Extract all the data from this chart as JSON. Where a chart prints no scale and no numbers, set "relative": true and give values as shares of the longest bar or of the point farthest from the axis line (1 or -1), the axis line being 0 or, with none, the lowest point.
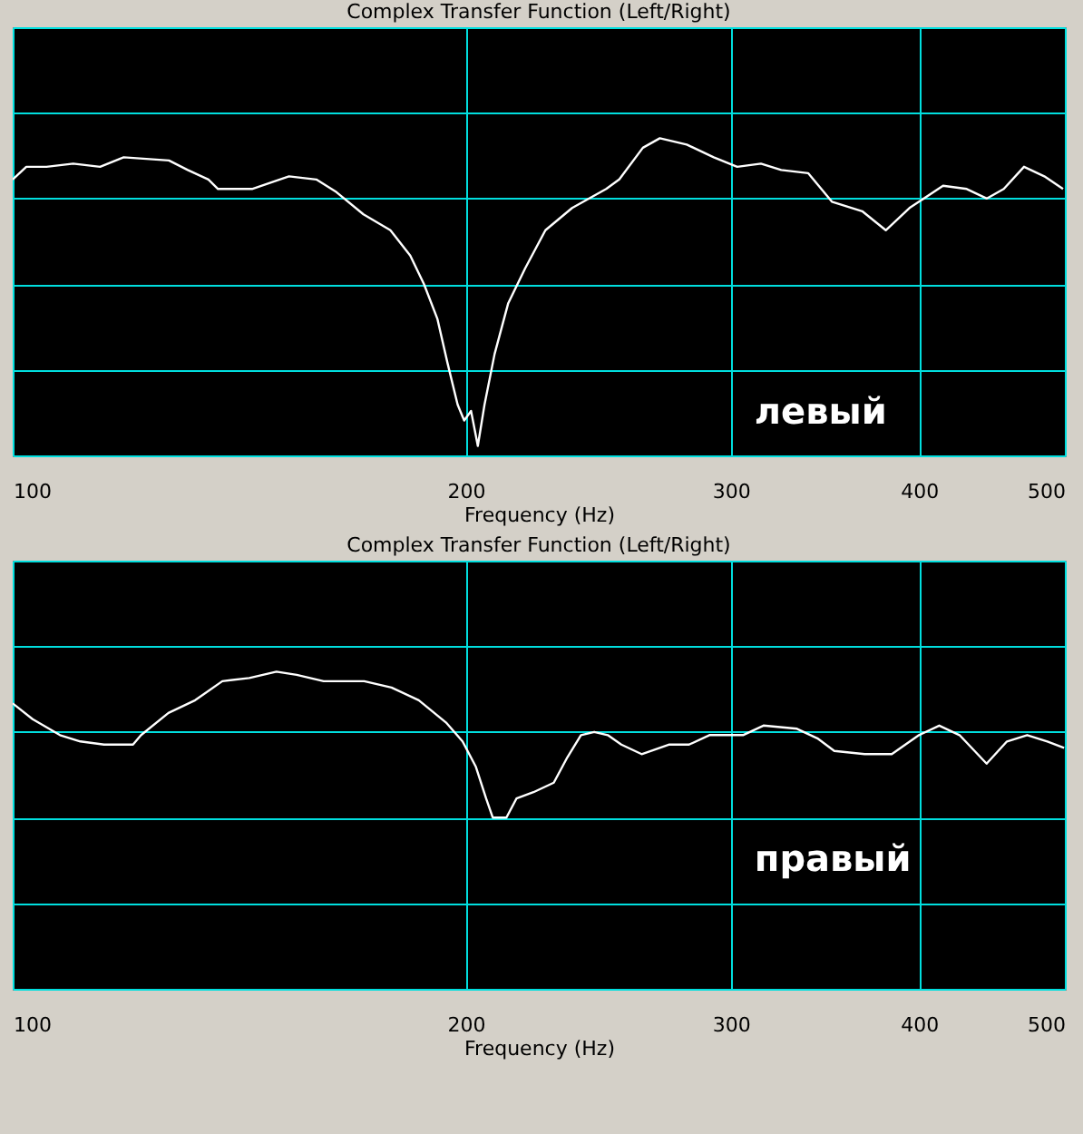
{
  "chart_data": [
    {
      "type": "line",
      "title": "Complex Transfer Function (Left/Right)",
      "xlabel": "Frequency (Hz)",
      "relative": true,
      "log": "x",
      "grid": true,
      "xlim": [
        100,
        500
      ],
      "xticks": [
        100,
        200,
        300,
        400,
        500
      ],
      "annotations": [
        "левый"
      ],
      "series": [
        {
          "color": "#ffffff",
          "x": [
            100,
            102.1,
            105.3,
            109.7,
            114.3,
            118.5,
            127.0,
            130.7,
            134.9,
            136.9,
            144.2,
            152.6,
            159.1,
            164.1,
            171.0,
            178.2,
            183.7,
            187.6,
            191.5,
            194.5,
            197.5,
            199.5,
            201.6,
            203.7,
            205.8,
            209.0,
            213.4,
            219.0,
            225.9,
            235.3,
            247.9,
            252.9,
            262.2,
            269.1,
            280.4,
            292.2,
            302.9,
            314.1,
            324.0,
            337.6,
            350.1,
            366.7,
            380.2,
            394.2,
            415.0,
            430.3,
            443.8,
            455.4,
            469.7,
            484.5,
            498.6
          ],
          "values": [
            0.87,
            0.91,
            0.91,
            0.92,
            0.91,
            0.94,
            0.93,
            0.9,
            0.87,
            0.84,
            0.84,
            0.88,
            0.87,
            0.83,
            0.76,
            0.71,
            0.63,
            0.54,
            0.43,
            0.29,
            0.16,
            0.11,
            0.14,
            0.03,
            0.16,
            0.32,
            0.48,
            0.59,
            0.71,
            0.78,
            0.84,
            0.87,
            0.97,
            1,
            0.98,
            0.94,
            0.91,
            0.92,
            0.9,
            0.89,
            0.8,
            0.77,
            0.71,
            0.78,
            0.85,
            0.84,
            0.81,
            0.84,
            0.91,
            0.88,
            0.84
          ]
        }
      ]
    },
    {
      "type": "line",
      "title": "Complex Transfer Function (Left/Right)",
      "xlabel": "Frequency (Hz)",
      "relative": true,
      "log": "x",
      "grid": true,
      "xlim": [
        100,
        500
      ],
      "xticks": [
        100,
        200,
        300,
        400,
        500
      ],
      "annotations": [
        "правый"
      ],
      "series": [
        {
          "color": "#ffffff",
          "x": [
            100,
            103.1,
            107.5,
            110.9,
            115.0,
            120.2,
            121.7,
            126.9,
            132.2,
            137.8,
            143.6,
            149.7,
            154.4,
            160.9,
            171.2,
            178.5,
            186.1,
            194.0,
            199.0,
            203.1,
            206.3,
            208.4,
            212.8,
            216.1,
            221.8,
            228.8,
            233.6,
            238.5,
            243.4,
            248.5,
            253.7,
            261.7,
            272.8,
            281.4,
            290.3,
            299.4,
            305.6,
            315.3,
            331.9,
            342.4,
            351.4,
            368.1,
            383.7,
            400.0,
            412.6,
            425.6,
            443.6,
            457.6,
            472.0,
            486.8,
            499.4
          ],
          "values": [
            0.9,
            0.85,
            0.8,
            0.78,
            0.77,
            0.77,
            0.8,
            0.87,
            0.91,
            0.97,
            0.98,
            1,
            0.99,
            0.97,
            0.97,
            0.95,
            0.91,
            0.84,
            0.78,
            0.7,
            0.6,
            0.54,
            0.54,
            0.6,
            0.62,
            0.65,
            0.73,
            0.8,
            0.81,
            0.8,
            0.77,
            0.74,
            0.77,
            0.77,
            0.8,
            0.8,
            0.8,
            0.83,
            0.82,
            0.79,
            0.75,
            0.74,
            0.74,
            0.8,
            0.83,
            0.8,
            0.71,
            0.78,
            0.8,
            0.78,
            0.76
          ]
        }
      ]
    }
  ]
}
